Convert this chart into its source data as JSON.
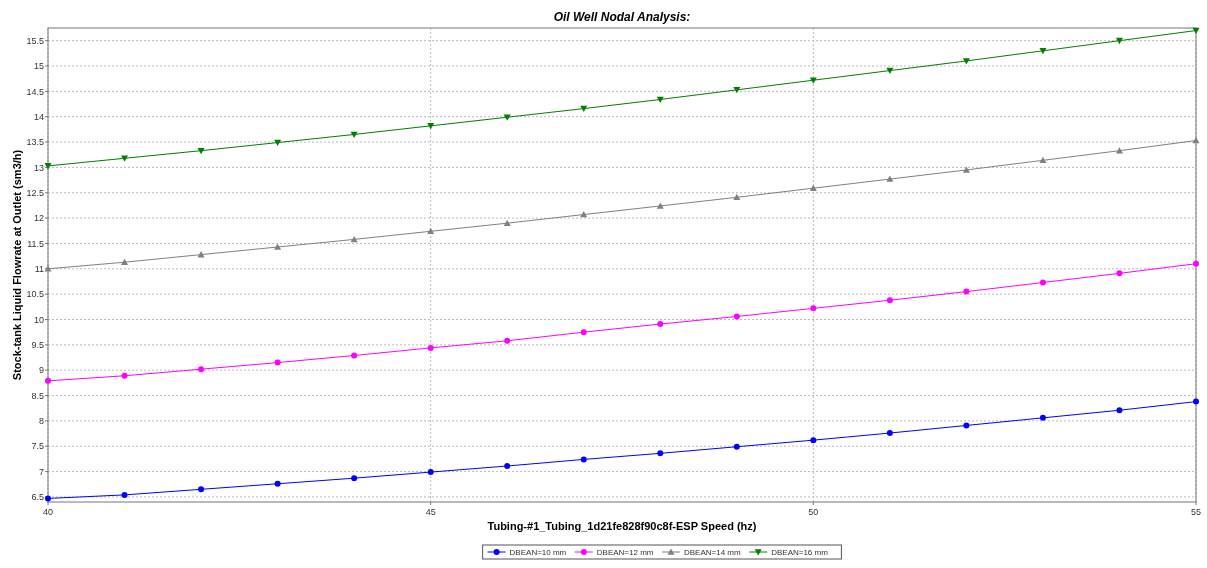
{
  "chart_data": {
    "type": "line",
    "title": "Oil Well Nodal Analysis:",
    "xlabel": "Tubing-#1_Tubing_1d21fe828f90c8f-ESP Speed (hz)",
    "ylabel": "Stock-tank Liquid Flowrate at Outlet (sm3/h)",
    "x": [
      40,
      41,
      42,
      43,
      44,
      45,
      46,
      47,
      48,
      49,
      50,
      51,
      52,
      53,
      54,
      55
    ],
    "xlim": [
      40,
      55
    ],
    "xticks": [
      40,
      45,
      50,
      55
    ],
    "ylim": [
      6.4,
      15.75
    ],
    "yticks": [
      6.5,
      7,
      7.5,
      8,
      8.5,
      9,
      9.5,
      10,
      10.5,
      11,
      11.5,
      12,
      12.5,
      13,
      13.5,
      14,
      14.5,
      15,
      15.5
    ],
    "grid": true,
    "legend": "bottom",
    "line_style": "solid",
    "series": [
      {
        "name": "DBEAN=10 mm",
        "color": "#0000ff",
        "marker": "circle",
        "values": [
          6.47,
          6.54,
          6.65,
          6.76,
          6.87,
          6.99,
          7.11,
          7.24,
          7.36,
          7.49,
          7.62,
          7.76,
          7.91,
          8.06,
          8.21,
          8.38
        ]
      },
      {
        "name": "DBEAN=12 mm",
        "color": "#ff00ff",
        "marker": "circle",
        "values": [
          8.79,
          8.89,
          9.02,
          9.15,
          9.29,
          9.44,
          9.58,
          9.75,
          9.91,
          10.06,
          10.22,
          10.38,
          10.55,
          10.73,
          10.91,
          11.1
        ]
      },
      {
        "name": "DBEAN=14 mm",
        "color": "#808080",
        "marker": "triangle",
        "values": [
          11.0,
          11.13,
          11.28,
          11.43,
          11.58,
          11.74,
          11.9,
          12.07,
          12.24,
          12.41,
          12.59,
          12.77,
          12.95,
          13.14,
          13.33,
          13.53
        ]
      },
      {
        "name": "DBEAN=16 mm",
        "color": "#008000",
        "marker": "triangle-down",
        "values": [
          13.03,
          13.18,
          13.33,
          13.49,
          13.65,
          13.82,
          13.99,
          14.16,
          14.34,
          14.53,
          14.72,
          14.91,
          15.1,
          15.3,
          15.5,
          15.7
        ]
      }
    ]
  }
}
